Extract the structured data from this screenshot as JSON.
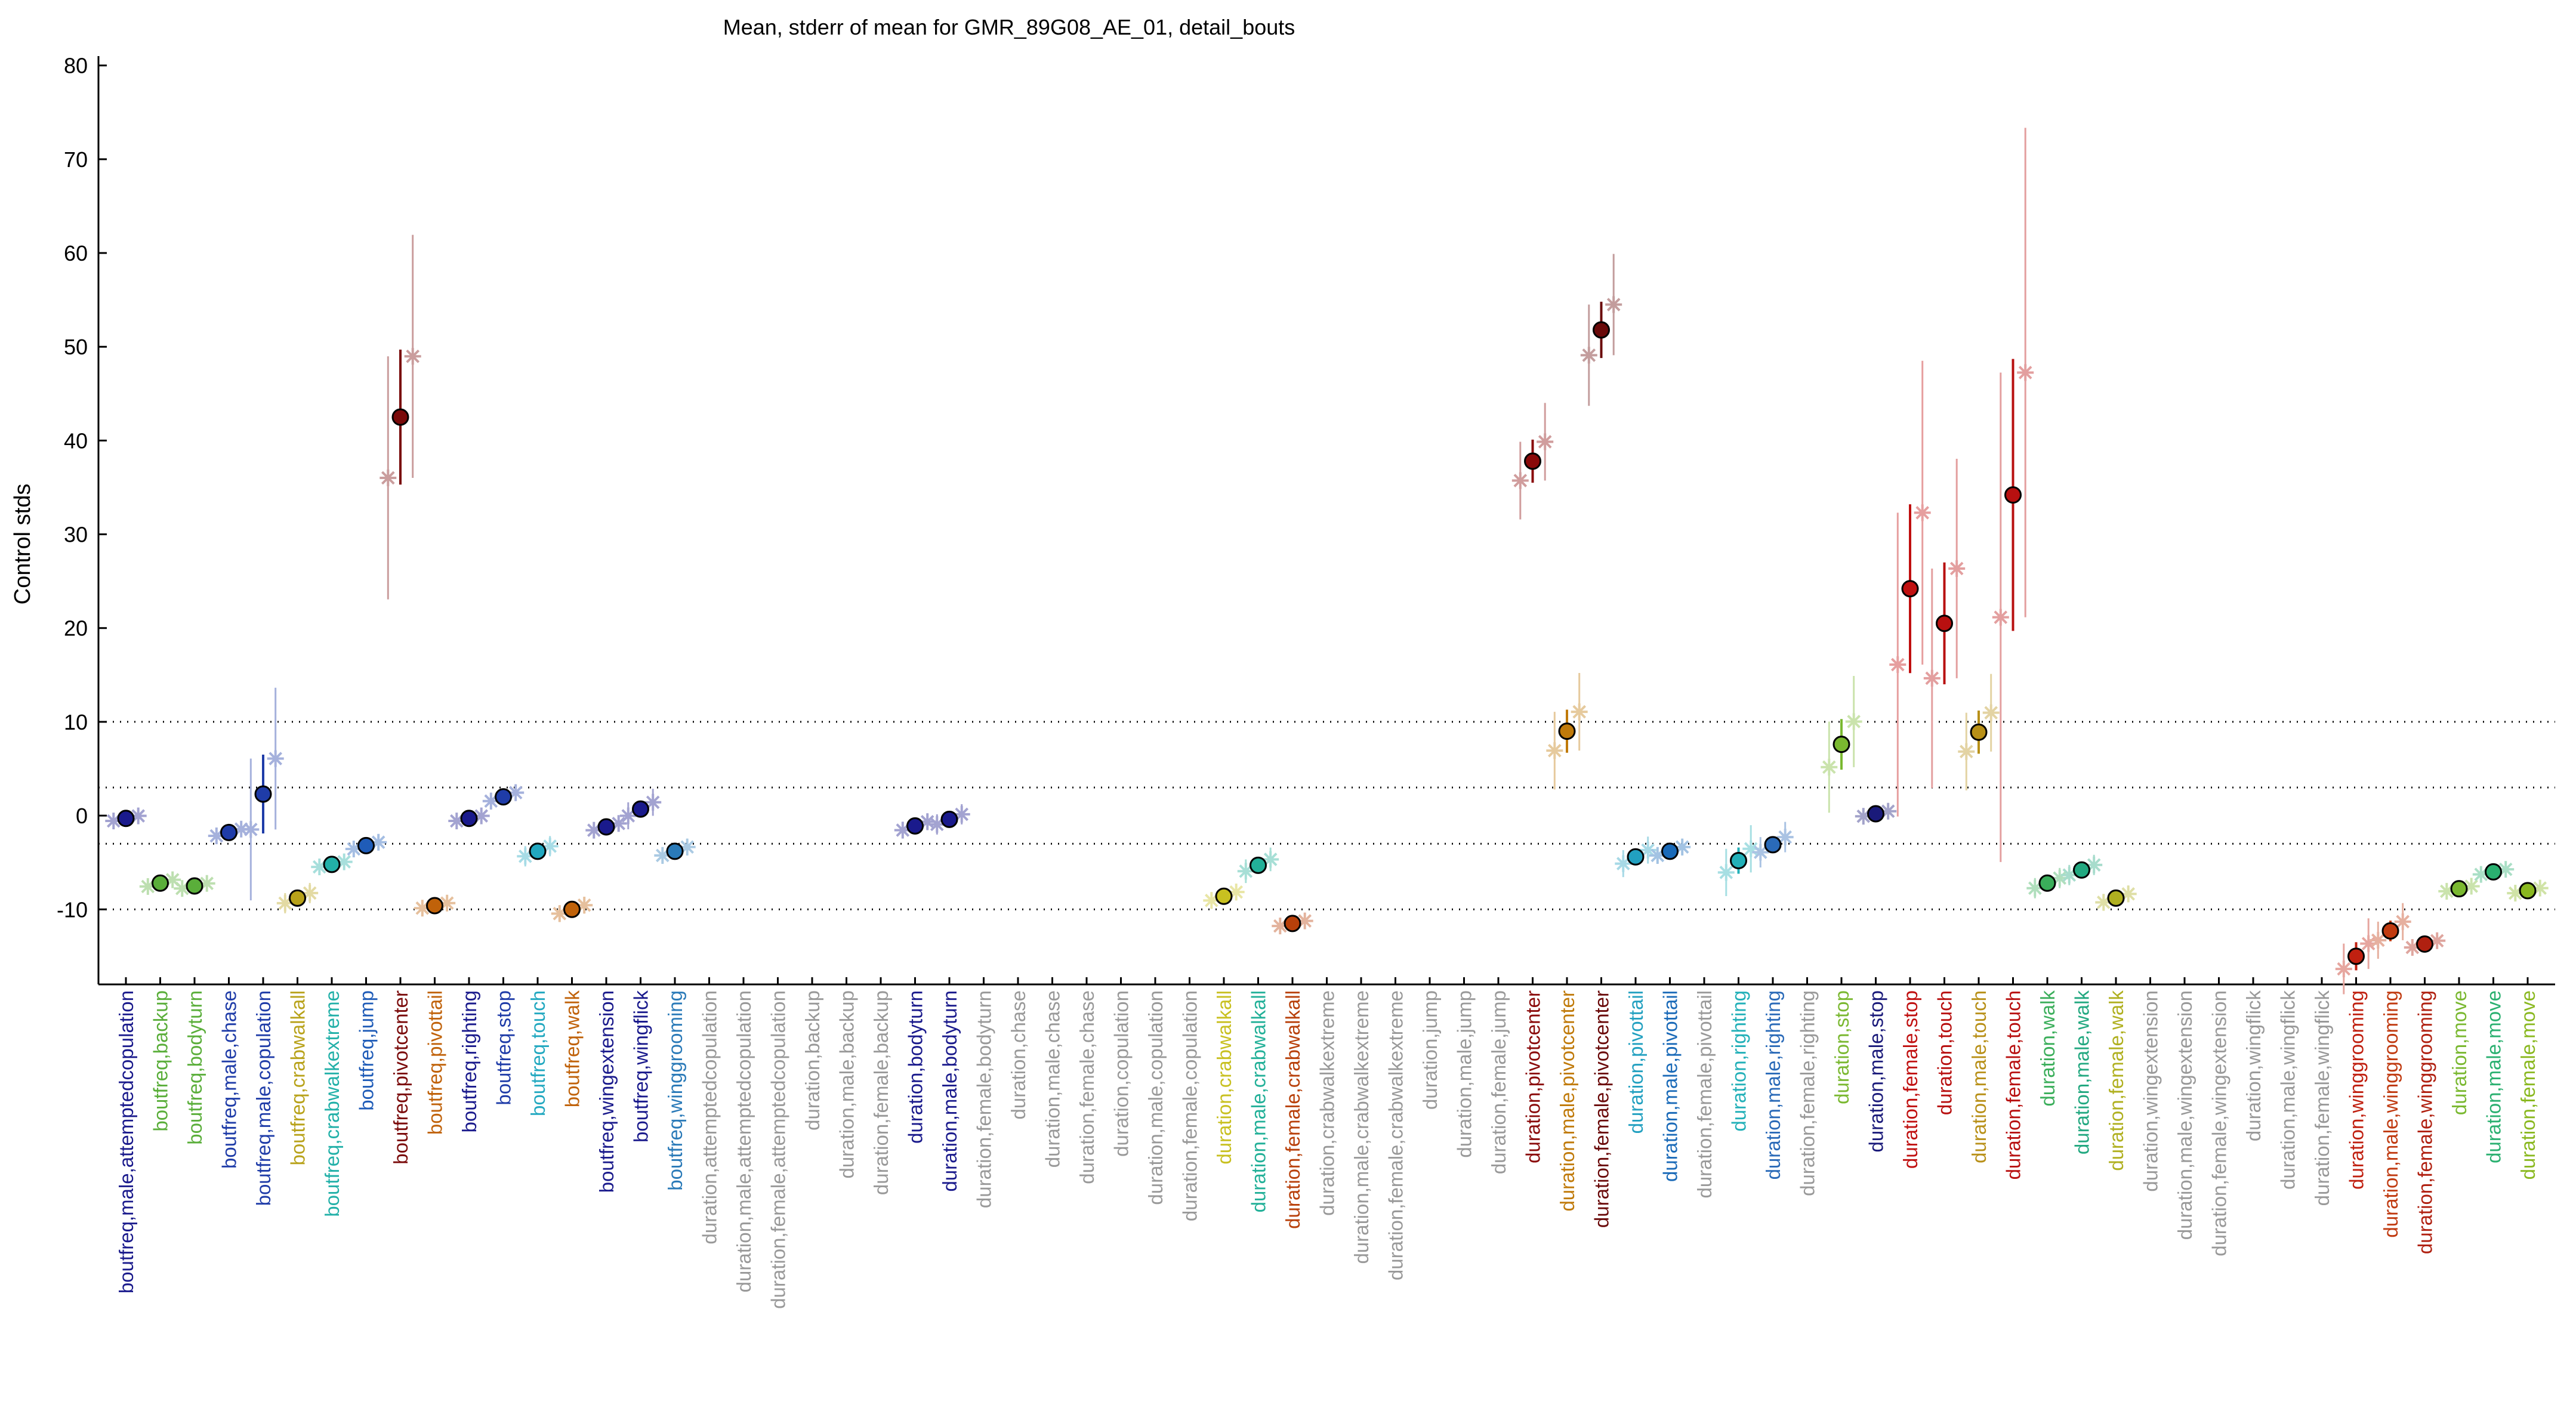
{
  "chart_data": {
    "type": "scatter",
    "title": "Mean, stderr of mean for GMR_89G08_AE_01, detail_bouts",
    "xlabel": "",
    "ylabel": "Control stds",
    "ylim": [
      -18,
      81
    ],
    "yticks": [
      -10,
      0,
      10,
      20,
      30,
      40,
      50,
      60,
      70,
      80
    ],
    "reference_lines": [
      -10,
      -3,
      3,
      10
    ],
    "grid": false,
    "legend": "none",
    "categories": [
      "boutfreq,male,attemptedcopulation",
      "boutfreq,backup",
      "boutfreq,bodyturn",
      "boutfreq,male,chase",
      "boutfreq,male,copulation",
      "boutfreq,crabwalkall",
      "boutfreq,crabwalkextreme",
      "boutfreq,jump",
      "boutfreq,pivotcenter",
      "boutfreq,pivottail",
      "boutfreq,righting",
      "boutfreq,stop",
      "boutfreq,touch",
      "boutfreq,walk",
      "boutfreq,wingextension",
      "boutfreq,wingflick",
      "boutfreq,winggrooming",
      "duration,attemptedcopulation",
      "duration,male,attemptedcopulation",
      "duration,female,attemptedcopulation",
      "duration,backup",
      "duration,male,backup",
      "duration,female,backup",
      "duration,bodyturn",
      "duration,male,bodyturn",
      "duration,female,bodyturn",
      "duration,chase",
      "duration,male,chase",
      "duration,female,chase",
      "duration,copulation",
      "duration,male,copulation",
      "duration,female,copulation",
      "duration,crabwalkall",
      "duration,male,crabwalkall",
      "duration,female,crabwalkall",
      "duration,crabwalkextreme",
      "duration,male,crabwalkextreme",
      "duration,female,crabwalkextreme",
      "duration,jump",
      "duration,male,jump",
      "duration,female,jump",
      "duration,pivotcenter",
      "duration,male,pivotcenter",
      "duration,female,pivotcenter",
      "duration,pivottail",
      "duration,male,pivottail",
      "duration,female,pivottail",
      "duration,righting",
      "duration,male,righting",
      "duration,female,righting",
      "duration,stop",
      "duration,male,stop",
      "duration,female,stop",
      "duration,touch",
      "duration,male,touch",
      "duration,female,touch",
      "duration,walk",
      "duration,male,walk",
      "duration,female,walk",
      "duration,wingextension",
      "duration,male,wingextension",
      "duration,female,wingextension",
      "duration,wingflick",
      "duration,male,wingflick",
      "duration,female,wingflick",
      "duration,winggrooming",
      "duration,male,winggrooming",
      "duration,female,winggrooming",
      "duration,move",
      "duration,male,move",
      "duration,female,move"
    ],
    "category_colors": [
      "#1a1a8c",
      "#5aae3a",
      "#5aae3a",
      "#1f3ca8",
      "#1f3ca8",
      "#b8a21a",
      "#22b0a8",
      "#1f5cb8",
      "#7a0a0a",
      "#c0620a",
      "#1a1a8c",
      "#1f3ca8",
      "#22a8c0",
      "#c0620a",
      "#1a1a8c",
      "#1a1a8c",
      "#2a7ab8",
      "#999999",
      "#999999",
      "#999999",
      "#999999",
      "#999999",
      "#999999",
      "#1a1a8c",
      "#1a1a8c",
      "#999999",
      "#999999",
      "#999999",
      "#999999",
      "#999999",
      "#999999",
      "#999999",
      "#c8c020",
      "#22b098",
      "#b8400a",
      "#999999",
      "#999999",
      "#999999",
      "#999999",
      "#999999",
      "#999999",
      "#8a0a0a",
      "#c07a0a",
      "#6a0a0a",
      "#22a0c0",
      "#1a6ab8",
      "#999999",
      "#22b0b8",
      "#2a6ab8",
      "#999999",
      "#7ab830",
      "#1a1a7a",
      "#c01010",
      "#b81010",
      "#b89018",
      "#b81010",
      "#3aae5a",
      "#22a880",
      "#b0b020",
      "#999999",
      "#999999",
      "#999999",
      "#999999",
      "#999999",
      "#999999",
      "#c02010",
      "#c03a10",
      "#b02010",
      "#7ab830",
      "#2ab070",
      "#8ab820"
    ],
    "series": [
      {
        "name": "",
        "stat": "mean, stderr",
        "values": [
          -0.3,
          -7.2,
          -7.5,
          -1.8,
          2.3,
          -8.8,
          -5.2,
          -3.2,
          42.5,
          -9.6,
          -0.3,
          2.0,
          -3.8,
          -10.0,
          -1.2,
          0.7,
          -3.8,
          null,
          null,
          null,
          null,
          null,
          null,
          -1.1,
          -0.4,
          null,
          null,
          null,
          null,
          null,
          null,
          null,
          -8.6,
          -5.3,
          -11.5,
          null,
          null,
          null,
          null,
          null,
          null,
          37.8,
          9.0,
          51.8,
          -4.4,
          -3.8,
          null,
          -4.8,
          -3.1,
          null,
          7.6,
          0.2,
          24.2,
          20.5,
          8.9,
          34.2,
          -7.2,
          -5.8,
          -8.8,
          null,
          null,
          null,
          null,
          null,
          null,
          -15.0,
          -12.3,
          -13.7,
          -7.8,
          -6.0,
          -8.0
        ],
        "stderr": [
          0.3,
          0.4,
          0.3,
          0.4,
          4.2,
          0.6,
          0.3,
          0.4,
          7.2,
          0.3,
          0.3,
          0.5,
          0.6,
          0.5,
          0.4,
          0.8,
          0.5,
          null,
          null,
          null,
          null,
          null,
          null,
          0.5,
          0.6,
          null,
          null,
          null,
          null,
          null,
          null,
          null,
          0.5,
          0.7,
          0.3,
          null,
          null,
          null,
          null,
          null,
          null,
          2.3,
          2.3,
          3.0,
          0.8,
          0.5,
          null,
          1.4,
          0.9,
          null,
          2.7,
          0.3,
          9.0,
          6.5,
          2.3,
          14.5,
          0.6,
          0.6,
          0.5,
          null,
          null,
          null,
          null,
          null,
          null,
          1.5,
          1.1,
          0.4,
          0.3,
          0.3,
          0.3
        ]
      }
    ],
    "secondary_markers": "star markers at individual points per category, plotted faded around each mean"
  }
}
